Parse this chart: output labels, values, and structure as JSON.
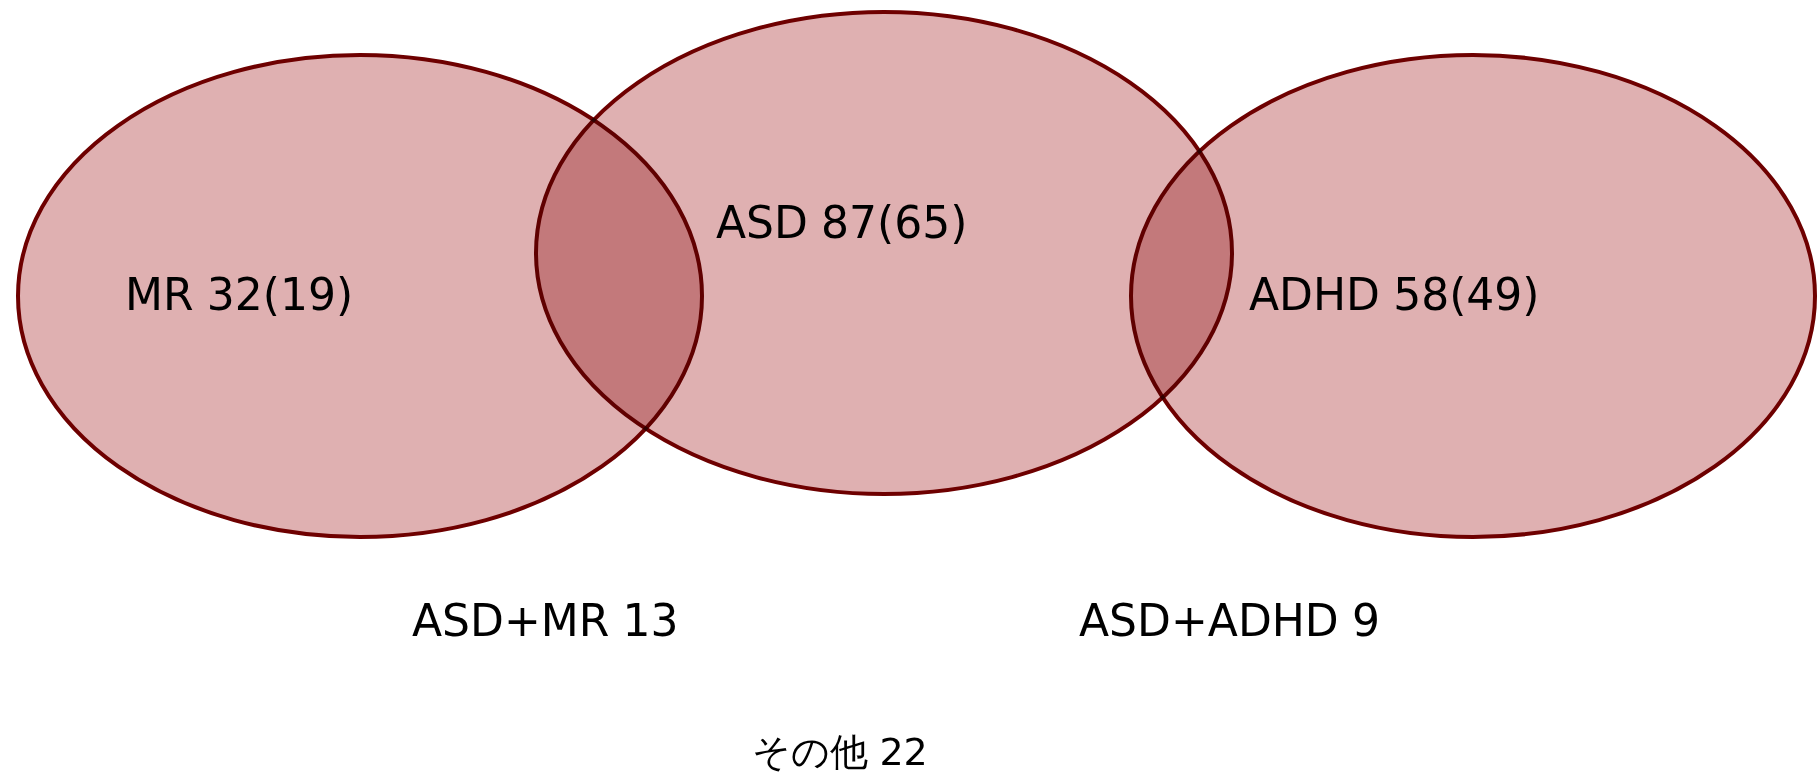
{
  "chart_data": {
    "type": "other",
    "categories": [
      "MR",
      "ASD",
      "ADHD",
      "ASD+MR",
      "ASD+ADHD",
      "その他"
    ],
    "series": [
      {
        "values": [
          32,
          87,
          58,
          13,
          9,
          22
        ]
      },
      {
        "values": [
          19,
          65,
          49,
          null,
          null,
          null
        ],
        "value_labels": [
          "(19)",
          "(65)",
          "(49)",
          null,
          null,
          null
        ]
      }
    ],
    "data_labels": true,
    "colors": [
      "#dfb0b1",
      "#dfb0b1",
      "#dfb0b1",
      null,
      null,
      null
    ]
  }
}
